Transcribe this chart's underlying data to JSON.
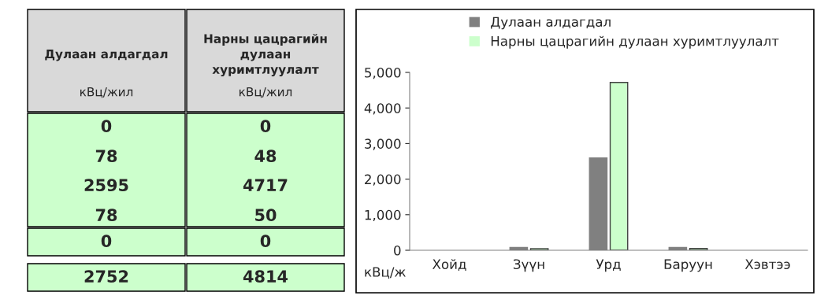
{
  "chart_data": [
    {
      "type": "other",
      "annotations": [
        "Дулаан алдагдал",
        "Нарны цацрагийн дулаан хуримтлуулалт",
        "кВц/жил",
        "кВц/жил",
        "0",
        "0",
        "78",
        "48",
        "2595",
        "4717",
        "78",
        "50",
        "0",
        "0",
        "2752",
        "4814"
      ]
    },
    {
      "type": "bar",
      "categories": [
        "Хойд",
        "Зүүн",
        "Урд",
        "Баруун",
        "Хэвтээ"
      ],
      "series": [
        {
          "name": "Дулаан алдагдал",
          "color": "#808080",
          "values": [
            0,
            78,
            2595,
            78,
            0
          ]
        },
        {
          "name": "Нарны цацрагийн дулаан хуримтлуулалт",
          "color": "#ccffcc",
          "values": [
            0,
            48,
            4717,
            50,
            0
          ]
        }
      ],
      "ylabel": "кВц/ж",
      "ylim": [
        0,
        5000
      ],
      "yticks": [
        {
          "value": 0,
          "label": "0"
        },
        {
          "value": 1000,
          "label": "1,000"
        },
        {
          "value": 2000,
          "label": "2,000"
        },
        {
          "value": 3000,
          "label": "3,000"
        },
        {
          "value": 4000,
          "label": "4,000"
        },
        {
          "value": 5000,
          "label": "5,000"
        }
      ],
      "grid": false,
      "legend": "top left"
    }
  ]
}
